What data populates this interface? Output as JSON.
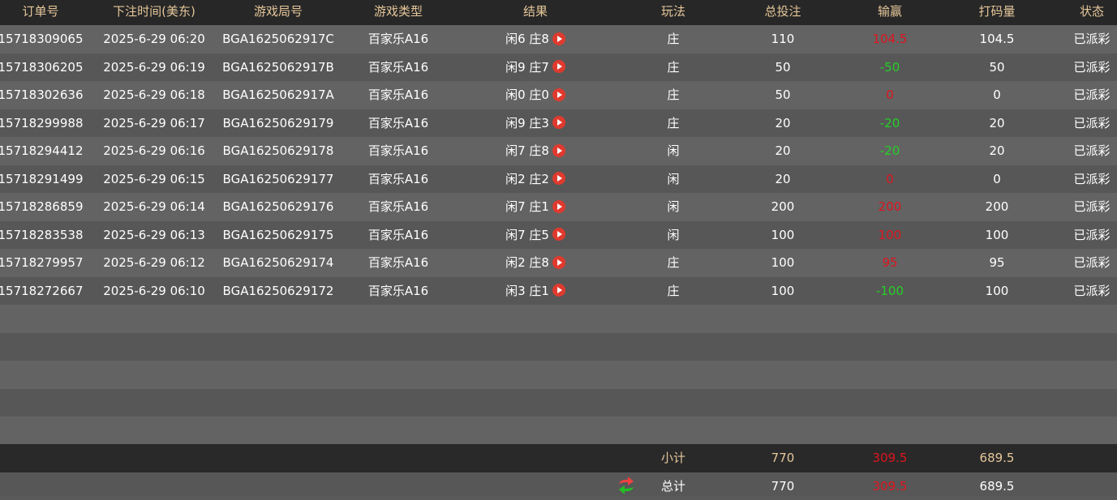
{
  "headers": [
    "订单号",
    "下注时间(美东)",
    "游戏局号",
    "游戏类型",
    "结果",
    "玩法",
    "总投注",
    "输赢",
    "打码量",
    "状态"
  ],
  "rows": [
    {
      "order": "15718309065",
      "time": "2025-6-29 06:20",
      "round": "BGA1625062917C",
      "game": "百家乐A16",
      "result": "闲6 庄8",
      "bet_type": "庄",
      "bet": "110",
      "win": "104.5",
      "win_color": "red",
      "valid": "104.5",
      "status": "已派彩"
    },
    {
      "order": "15718306205",
      "time": "2025-6-29 06:19",
      "round": "BGA1625062917B",
      "game": "百家乐A16",
      "result": "闲9 庄7",
      "bet_type": "庄",
      "bet": "50",
      "win": "-50",
      "win_color": "green",
      "valid": "50",
      "status": "已派彩"
    },
    {
      "order": "15718302636",
      "time": "2025-6-29 06:18",
      "round": "BGA1625062917A",
      "game": "百家乐A16",
      "result": "闲0 庄0",
      "bet_type": "庄",
      "bet": "50",
      "win": "0",
      "win_color": "red",
      "valid": "0",
      "status": "已派彩"
    },
    {
      "order": "15718299988",
      "time": "2025-6-29 06:17",
      "round": "BGA16250629179",
      "game": "百家乐A16",
      "result": "闲9 庄3",
      "bet_type": "庄",
      "bet": "20",
      "win": "-20",
      "win_color": "green",
      "valid": "20",
      "status": "已派彩"
    },
    {
      "order": "15718294412",
      "time": "2025-6-29 06:16",
      "round": "BGA16250629178",
      "game": "百家乐A16",
      "result": "闲7 庄8",
      "bet_type": "闲",
      "bet": "20",
      "win": "-20",
      "win_color": "green",
      "valid": "20",
      "status": "已派彩"
    },
    {
      "order": "15718291499",
      "time": "2025-6-29 06:15",
      "round": "BGA16250629177",
      "game": "百家乐A16",
      "result": "闲2 庄2",
      "bet_type": "闲",
      "bet": "20",
      "win": "0",
      "win_color": "red",
      "valid": "0",
      "status": "已派彩"
    },
    {
      "order": "15718286859",
      "time": "2025-6-29 06:14",
      "round": "BGA16250629176",
      "game": "百家乐A16",
      "result": "闲7 庄1",
      "bet_type": "闲",
      "bet": "200",
      "win": "200",
      "win_color": "red",
      "valid": "200",
      "status": "已派彩"
    },
    {
      "order": "15718283538",
      "time": "2025-6-29 06:13",
      "round": "BGA16250629175",
      "game": "百家乐A16",
      "result": "闲7 庄5",
      "bet_type": "闲",
      "bet": "100",
      "win": "100",
      "win_color": "red",
      "valid": "100",
      "status": "已派彩"
    },
    {
      "order": "15718279957",
      "time": "2025-6-29 06:12",
      "round": "BGA16250629174",
      "game": "百家乐A16",
      "result": "闲2 庄8",
      "bet_type": "庄",
      "bet": "100",
      "win": "95",
      "win_color": "red",
      "valid": "95",
      "status": "已派彩"
    },
    {
      "order": "15718272667",
      "time": "2025-6-29 06:10",
      "round": "BGA16250629172",
      "game": "百家乐A16",
      "result": "闲3 庄1",
      "bet_type": "庄",
      "bet": "100",
      "win": "-100",
      "win_color": "green",
      "valid": "100",
      "status": "已派彩"
    }
  ],
  "subtotal": {
    "label": "小计",
    "bet": "770",
    "win": "309.5",
    "valid": "689.5"
  },
  "total": {
    "label": "总计",
    "bet": "770",
    "win": "309.5",
    "valid": "689.5",
    "refresh_icon": "refresh-icon"
  },
  "colors": {
    "header_text": "#e6c79a",
    "loss": "#25d025",
    "win": "#e0141e"
  }
}
